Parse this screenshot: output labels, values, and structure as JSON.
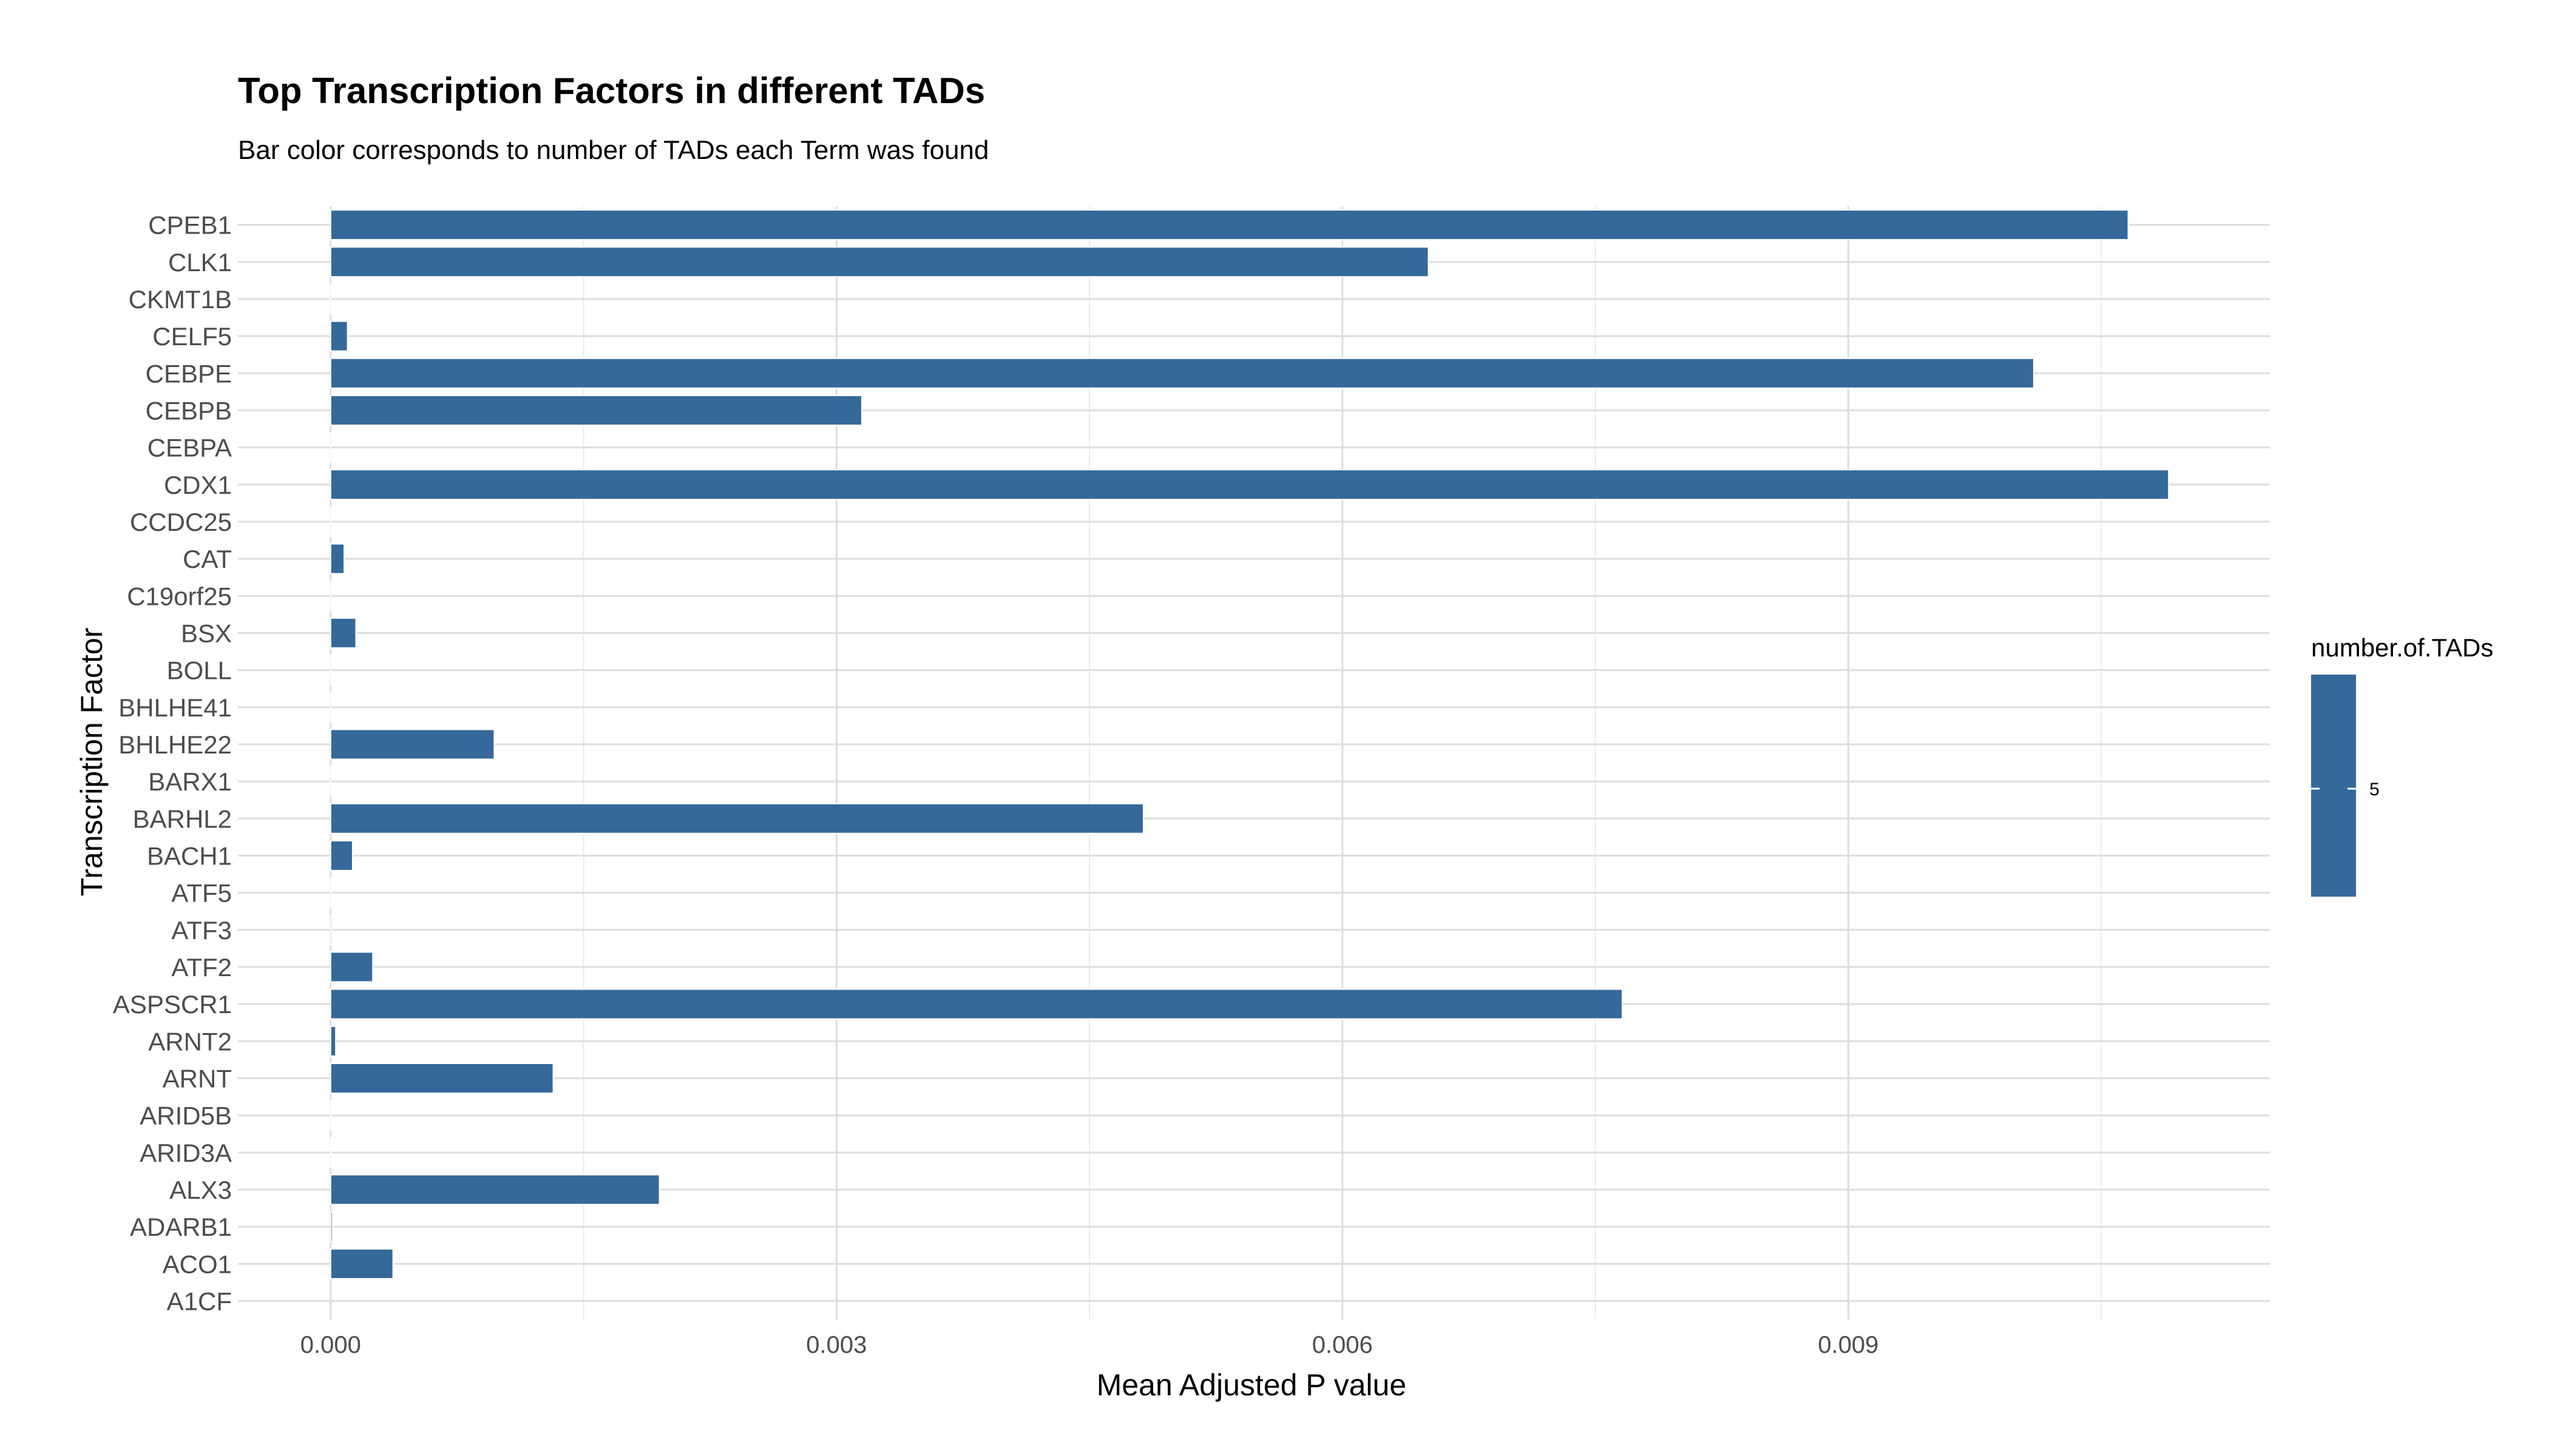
{
  "chart_data": {
    "type": "bar",
    "orientation": "horizontal",
    "title": "Top Transcription Factors in different TADs",
    "subtitle": "Bar color corresponds to number of TADs each Term was found",
    "xlabel": "Mean Adjusted P value",
    "ylabel": "Transcription Factor",
    "xlim": [
      -0.00055,
      0.0115
    ],
    "x_ticks": [
      0.0,
      0.003,
      0.006,
      0.009
    ],
    "x_tick_labels": [
      "0.000",
      "0.003",
      "0.006",
      "0.009"
    ],
    "grid": true,
    "categories": [
      "A1CF",
      "ACO1",
      "ADARB1",
      "ALX3",
      "ARID3A",
      "ARID5B",
      "ARNT",
      "ARNT2",
      "ASPSCR1",
      "ATF2",
      "ATF3",
      "ATF5",
      "BACH1",
      "BARHL2",
      "BARX1",
      "BHLHE22",
      "BHLHE41",
      "BOLL",
      "BSX",
      "C19orf25",
      "CAT",
      "CCDC25",
      "CDX1",
      "CEBPA",
      "CEBPB",
      "CEBPE",
      "CELF5",
      "CKMT1B",
      "CLK1",
      "CPEB1"
    ],
    "values": [
      0.0,
      0.00037,
      1e-05,
      0.00195,
      5e-06,
      2e-06,
      0.00132,
      3e-05,
      0.00766,
      0.00025,
      8e-06,
      2e-06,
      0.00013,
      0.00482,
      1e-06,
      0.00097,
      1e-06,
      1e-06,
      0.00015,
      1e-06,
      8e-05,
      1e-06,
      0.0109,
      1e-06,
      0.00315,
      0.0101,
      0.0001,
      1e-06,
      0.00651,
      0.01066
    ],
    "bar_color": "#35699A",
    "legend": {
      "title": "number.of.TADs",
      "tick_label": "5",
      "color": "#35699A",
      "placement": "right"
    }
  }
}
